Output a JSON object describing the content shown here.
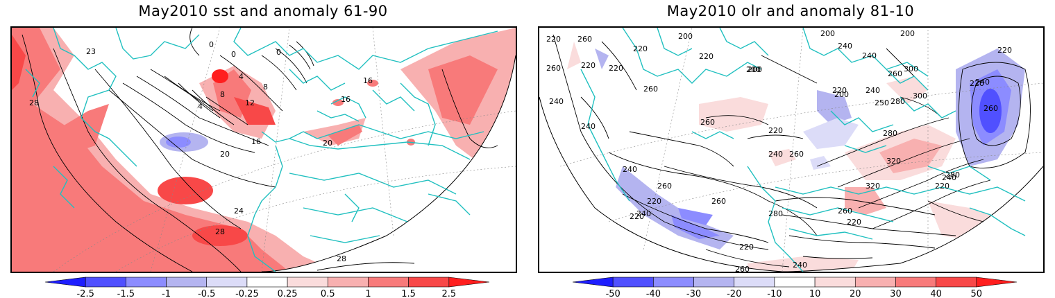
{
  "left_panel": {
    "title": "May2010 sst and anomaly 61-90",
    "contour_labels": [
      "0",
      "0",
      "0",
      "4",
      "4",
      "8",
      "8",
      "12",
      "16",
      "16",
      "16",
      "20",
      "20",
      "24",
      "28",
      "28",
      "28",
      "23"
    ],
    "colorbar": {
      "ticks": [
        "-2.5",
        "-1.5",
        "-1",
        "-0.5",
        "-0.25",
        "0.25",
        "0.5",
        "1",
        "1.5",
        "2.5"
      ],
      "colors": [
        "#1e1eff",
        "#5050ff",
        "#8c8cff",
        "#b4b4f0",
        "#dcdcf8",
        "#ffffff",
        "#fadcdc",
        "#f8b0b0",
        "#f87a7a",
        "#f84848",
        "#ff1e1e"
      ]
    }
  },
  "right_panel": {
    "title": "May2010 olr and anomaly 81-10",
    "contour_labels": [
      "220",
      "260",
      "200",
      "220",
      "240",
      "200",
      "220",
      "200",
      "260",
      "240",
      "220",
      "260",
      "300",
      "200",
      "200",
      "200",
      "220",
      "240",
      "280",
      "250",
      "300",
      "220",
      "220",
      "260",
      "240",
      "240",
      "220",
      "260",
      "240",
      "320",
      "260",
      "280",
      "240",
      "220",
      "260",
      "320",
      "260",
      "280",
      "220",
      "240",
      "240",
      "220",
      "280",
      "260",
      "220",
      "240",
      "260",
      "220",
      "220",
      "240",
      "260"
    ],
    "colorbar": {
      "ticks": [
        "-50",
        "-40",
        "-30",
        "-20",
        "-10",
        "10",
        "20",
        "30",
        "40",
        "50"
      ],
      "colors": [
        "#1e1eff",
        "#5050ff",
        "#8c8cff",
        "#b4b4f0",
        "#dcdcf8",
        "#ffffff",
        "#fadcdc",
        "#f8b0b0",
        "#f87a7a",
        "#f84848",
        "#ff1e1e"
      ]
    }
  },
  "colors": {
    "coastline": "#21c0c0",
    "contour": "#000000",
    "frame": "#000000"
  }
}
